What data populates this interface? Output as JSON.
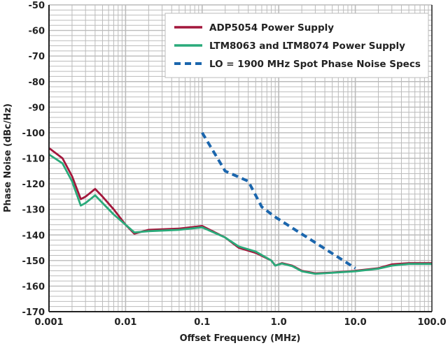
{
  "chart_data": {
    "type": "line",
    "title": "",
    "xlabel": "Offset Frequency (MHz)",
    "ylabel": "Phase Noise (dBc/Hz)",
    "xscale": "log",
    "xlim": [
      0.001,
      100
    ],
    "ylim": [
      -170,
      -50
    ],
    "grid": true,
    "legend_position": "top-right",
    "x_tick_labels": [
      "0.001",
      "0.01",
      "0.1",
      "1.0",
      "10.0",
      "100.0"
    ],
    "x_ticks": [
      0.001,
      0.01,
      0.1,
      1,
      10,
      100
    ],
    "y_ticks": [
      -50,
      -60,
      -70,
      -80,
      -90,
      -100,
      -110,
      -120,
      -130,
      -140,
      -150,
      -160,
      -170
    ],
    "series": [
      {
        "name": "ADP5054 Power Supply",
        "color": "#a3173c",
        "style": "solid",
        "x": [
          0.001,
          0.0015,
          0.002,
          0.0026,
          0.003,
          0.004,
          0.005,
          0.007,
          0.01,
          0.013,
          0.02,
          0.05,
          0.1,
          0.2,
          0.3,
          0.5,
          0.8,
          0.9,
          1.1,
          1.5,
          2,
          3,
          5,
          10,
          20,
          30,
          50,
          100
        ],
        "y": [
          -106,
          -110,
          -117,
          -126,
          -125,
          -122,
          -125,
          -130,
          -136,
          -139.5,
          -138,
          -137.5,
          -136.5,
          -141,
          -145,
          -147,
          -150,
          -152,
          -151,
          -152,
          -154,
          -155,
          -154.7,
          -154,
          -153,
          -151.5,
          -151,
          -151
        ]
      },
      {
        "name": "LTM8063 and LTM8074 Power Supply",
        "color": "#2aaa7a",
        "style": "solid",
        "x": [
          0.001,
          0.0015,
          0.002,
          0.0026,
          0.003,
          0.004,
          0.005,
          0.007,
          0.01,
          0.013,
          0.02,
          0.05,
          0.1,
          0.2,
          0.3,
          0.5,
          0.8,
          0.9,
          1.1,
          1.5,
          2,
          3,
          5,
          10,
          20,
          30,
          50,
          100
        ],
        "y": [
          -108.5,
          -112,
          -119,
          -128.5,
          -127.5,
          -124.5,
          -127.5,
          -132,
          -136,
          -139,
          -138.5,
          -138,
          -137,
          -141,
          -144.5,
          -146.5,
          -150,
          -152,
          -151.2,
          -152.2,
          -154.2,
          -155.2,
          -154.8,
          -154.2,
          -153.2,
          -152,
          -151.3,
          -151.3
        ]
      },
      {
        "name": "LO = 1900 MHz Spot Phase Noise Specs",
        "color": "#1b66ad",
        "style": "dashed",
        "x": [
          0.1,
          0.2,
          0.4,
          0.6,
          0.9,
          10
        ],
        "y": [
          -100,
          -115,
          -119,
          -129,
          -133,
          -153
        ]
      }
    ]
  }
}
